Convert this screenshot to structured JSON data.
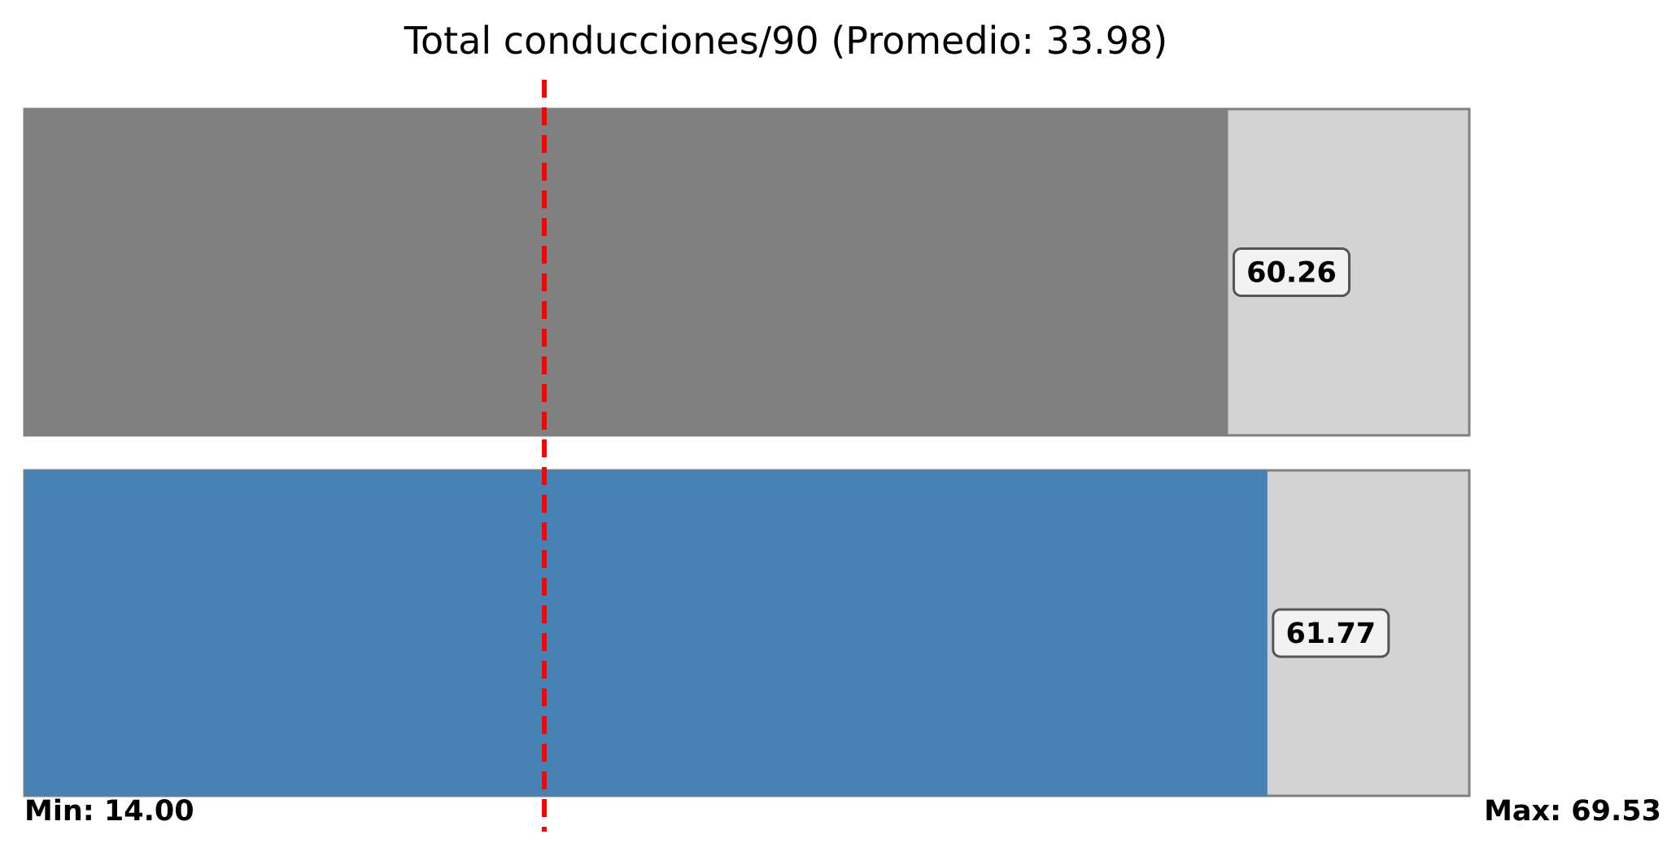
{
  "chart_data": {
    "type": "bar",
    "orientation": "horizontal",
    "title": "Total conducciones/90 (Promedio: 33.98)",
    "average": 33.98,
    "xlim": [
      14.0,
      69.53
    ],
    "min_label": "Min: 14.00",
    "max_label": "Max: 69.53",
    "series": [
      {
        "values": [
          60.26
        ],
        "label": "60.26",
        "color": "#808080"
      },
      {
        "values": [
          61.77
        ],
        "label": "61.77",
        "color": "#4682b4"
      }
    ],
    "track_color": "#d3d3d3",
    "average_line_color": "#ff0000",
    "grid": false
  }
}
